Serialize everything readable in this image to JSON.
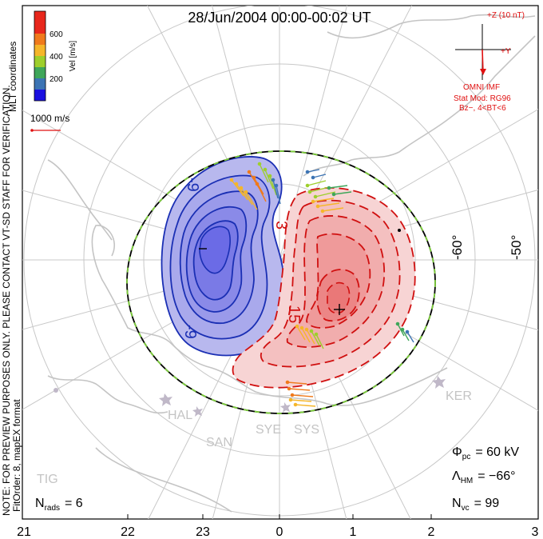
{
  "title": "28/Jun/2004 00:00-00:02 UT",
  "colorbar": {
    "label": "Vel [m/s]",
    "ticks": [
      "600",
      "400",
      "200"
    ],
    "colors": [
      "#e8271c",
      "#f07a1c",
      "#f5b62a",
      "#9ecf2c",
      "#3fa65a",
      "#3c74b4",
      "#2a3fd0",
      "#1a10e0"
    ]
  },
  "coords_label": "MLT coordinates",
  "ref_vector_label": "1000 m/s",
  "imf": {
    "label_z": "+Z (10 nT)",
    "label_y": "+Y",
    "source": "OMNI IMF",
    "stat_mod": "Stat Mod: RG96",
    "bz_cond": "Bz−, 4<BT<6"
  },
  "preview_note": "NOTE: FOR PREVIEW PURPOSES ONLY. PLEASE CONTACT VT-SD STAFF FOR VERIFICATION.",
  "fit_order": "FitOrder: 8, mapEX format",
  "stats": {
    "nrads": "N",
    "nrads_sub": "rads",
    "nrads_val": "= 6",
    "phi": "Φ",
    "phi_sub": "pc",
    "phi_val": "= 60 kV",
    "lambda": "Λ",
    "lambda_sub": "HM",
    "lambda_val": "= −66°",
    "nvc": "N",
    "nvc_sub": "vc",
    "nvc_val": "= 99"
  },
  "lat_labels": [
    "-60°",
    "-50°"
  ],
  "mlt_ticks": [
    "21",
    "22",
    "23",
    "0",
    "1",
    "2",
    "3"
  ],
  "stations": [
    "HAL",
    "SAN",
    "SYE",
    "SYS",
    "KER",
    "TIG"
  ],
  "contour_labels": [
    "-9",
    "-9",
    "3",
    "15",
    "-9"
  ],
  "colors": {
    "negative_line": "#1a2fb4",
    "positive_line": "#d01010",
    "negative_fill": "#6b6be6",
    "positive_fill": "#f08080",
    "boundary": "#000000",
    "boundary_dash": "#7ccd3a",
    "grid": "#c8c8c8",
    "coast": "#c4c4c4",
    "imf_red": "#e01010"
  }
}
